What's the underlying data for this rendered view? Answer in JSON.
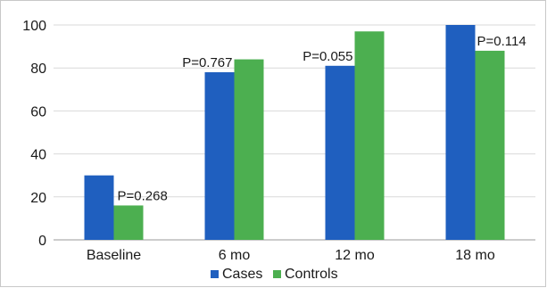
{
  "chart_data": {
    "type": "bar",
    "categories": [
      "Baseline",
      "6 mo",
      "12 mo",
      "18 mo"
    ],
    "series": [
      {
        "name": "Cases",
        "values": [
          30,
          78,
          81,
          100
        ],
        "color": "#1f5fbf"
      },
      {
        "name": "Controls",
        "values": [
          16,
          84,
          97,
          88
        ],
        "color": "#4caf50"
      }
    ],
    "annotations": [
      "P=0.268",
      "P=0.767",
      "P=0.055",
      "P=0.114"
    ],
    "yticks": [
      0,
      20,
      40,
      60,
      80,
      100
    ],
    "ylim": [
      0,
      100
    ],
    "title": "",
    "xlabel": "",
    "ylabel": "",
    "grid": true,
    "legend_position": "bottom"
  }
}
